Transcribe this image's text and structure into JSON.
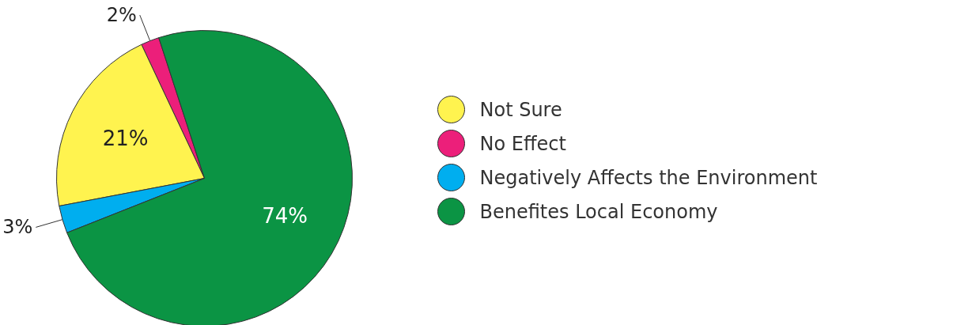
{
  "chart_data": {
    "type": "pie",
    "categories": [
      "Not Sure",
      "No Effect",
      "Negatively Affects the Environment",
      "Benefites Local Economy"
    ],
    "values": [
      21,
      2,
      3,
      74
    ],
    "colors": [
      "#fff34f",
      "#ec1f7a",
      "#00aeef",
      "#0b9444"
    ],
    "value_labels": [
      "21%",
      "2%",
      "3%",
      "74%"
    ],
    "legend": "right"
  }
}
